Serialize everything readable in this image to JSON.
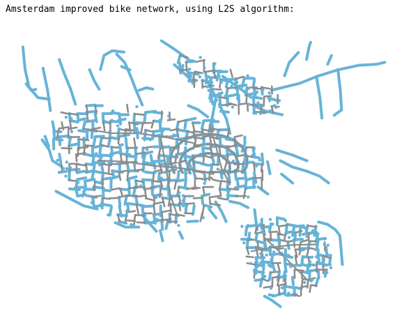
{
  "caption": "Amsterdam improved bike network, using L2S algorithm:",
  "map": {
    "colors": {
      "background": "#ffffff",
      "street": "#67b3d8",
      "improved_edge": "#8c8c8c",
      "node": "#67b3d8"
    }
  }
}
